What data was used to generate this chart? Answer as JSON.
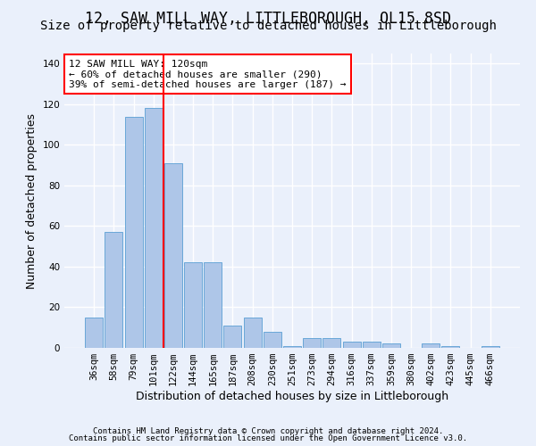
{
  "title": "12, SAW MILL WAY, LITTLEBOROUGH, OL15 8SD",
  "subtitle": "Size of property relative to detached houses in Littleborough",
  "xlabel": "Distribution of detached houses by size in Littleborough",
  "ylabel": "Number of detached properties",
  "footnote1": "Contains HM Land Registry data © Crown copyright and database right 2024.",
  "footnote2": "Contains public sector information licensed under the Open Government Licence v3.0.",
  "categories": [
    "36sqm",
    "58sqm",
    "79sqm",
    "101sqm",
    "122sqm",
    "144sqm",
    "165sqm",
    "187sqm",
    "208sqm",
    "230sqm",
    "251sqm",
    "273sqm",
    "294sqm",
    "316sqm",
    "337sqm",
    "359sqm",
    "380sqm",
    "402sqm",
    "423sqm",
    "445sqm",
    "466sqm"
  ],
  "values": [
    15,
    57,
    114,
    118,
    91,
    42,
    42,
    11,
    15,
    8,
    1,
    5,
    5,
    3,
    3,
    2,
    0,
    2,
    1,
    0,
    1
  ],
  "bar_color": "#aec6e8",
  "bar_edge_color": "#5a9fd4",
  "red_line_index": 4,
  "annotation_text": "12 SAW MILL WAY: 120sqm\n← 60% of detached houses are smaller (290)\n39% of semi-detached houses are larger (187) →",
  "annotation_box_color": "white",
  "annotation_box_edge_color": "red",
  "red_line_color": "red",
  "ylim": [
    0,
    145
  ],
  "yticks": [
    0,
    20,
    40,
    60,
    80,
    100,
    120,
    140
  ],
  "bg_color": "#eaf0fb",
  "plot_bg_color": "#eaf0fb",
  "grid_color": "white",
  "title_fontsize": 12,
  "subtitle_fontsize": 10,
  "label_fontsize": 9,
  "tick_fontsize": 7.5,
  "footnote_fontsize": 6.5
}
